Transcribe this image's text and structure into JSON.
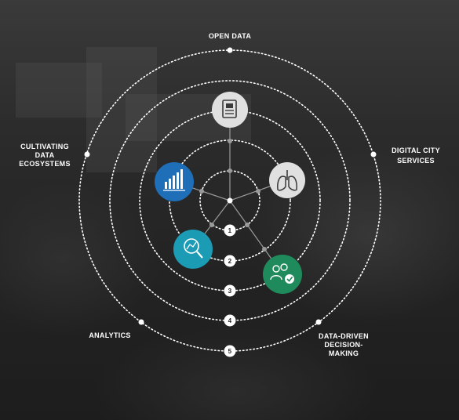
{
  "pillars": {
    "open_data": "OPEN DATA",
    "digital_city_services": [
      "DIGITAL CITY",
      "SERVICES"
    ],
    "data_driven": [
      "DATA-DRIVEN",
      "DECISION-",
      "MAKING"
    ],
    "analytics": "ANALYTICS",
    "cultivating": [
      "CULTIVATING",
      "DATA",
      "ECOSYSTEMS"
    ]
  },
  "ring_numbers": [
    "1",
    "2",
    "3",
    "4",
    "5"
  ],
  "icons": [
    {
      "name": "document-icon",
      "color": "#e0e0e0"
    },
    {
      "name": "lungs-icon",
      "color": "#e0e0e0"
    },
    {
      "name": "people-check-icon",
      "color": "#1f8a5b"
    },
    {
      "name": "magnifier-chart-icon",
      "color": "#1c9bb5"
    },
    {
      "name": "bar-chart-icon",
      "color": "#1f6fb8"
    }
  ],
  "colors": {
    "ring": "#ffffff",
    "spoke": "#8a8a8a",
    "grey_icon": "#e0e0e0",
    "blue_icon": "#1f6fb8",
    "teal_icon": "#1c9bb5",
    "green_icon": "#1f8a5b"
  }
}
